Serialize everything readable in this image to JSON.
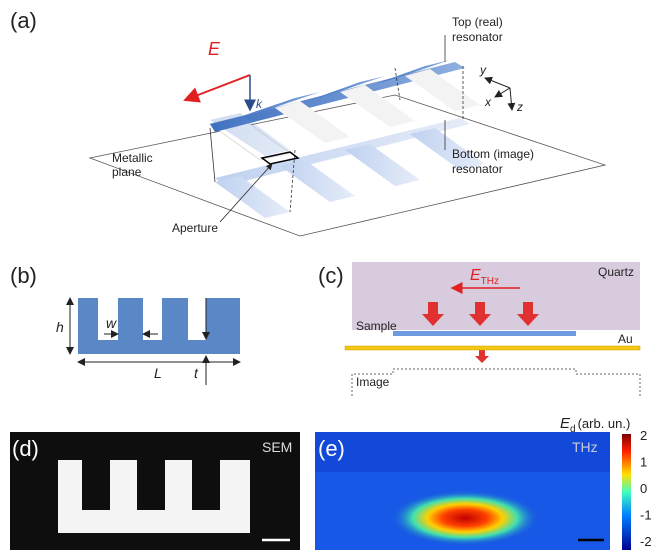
{
  "panels": {
    "a": {
      "label": "(a)",
      "field": "E",
      "wavevector": "k",
      "top": [
        "Top (real)",
        "resonator"
      ],
      "axes": [
        "y",
        "x",
        "z"
      ],
      "plane": [
        "Metallic",
        "plane"
      ],
      "bottom": [
        "Bottom (image)",
        "resonator"
      ],
      "aperture": "Aperture"
    },
    "b": {
      "label": "(b)",
      "dims": [
        "h",
        "w",
        "L",
        "t"
      ]
    },
    "c": {
      "label": "(c)",
      "quartz": "Quartz",
      "field": "E",
      "field_sub": "THz",
      "sample": "Sample",
      "gold": "Au",
      "image": "Image"
    },
    "d": {
      "label": "(d)",
      "tag": "SEM"
    },
    "e": {
      "label": "(e)",
      "tag": "THz",
      "colorbar_title": "E",
      "colorbar_sub": "d",
      "colorbar_unit": "(arb. un.)",
      "colorbar_ticks": [
        "2",
        "1",
        "0",
        "-1",
        "-2"
      ]
    }
  }
}
